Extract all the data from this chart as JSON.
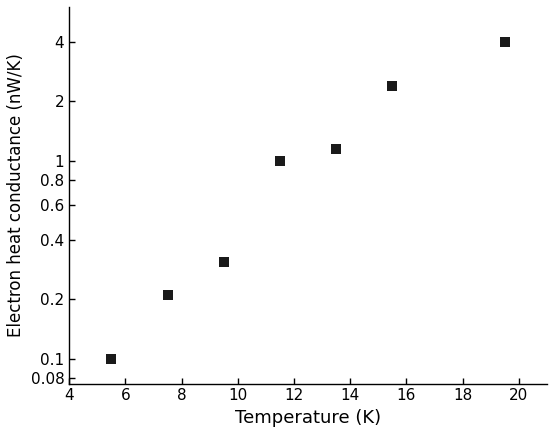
{
  "x": [
    5.5,
    7.5,
    9.5,
    11.5,
    13.5,
    15.5,
    19.5
  ],
  "y": [
    0.1,
    0.21,
    0.31,
    1.0,
    1.15,
    2.4,
    4.0
  ],
  "xlabel": "Temperature (K)",
  "ylabel": "Electron heat conductance (nW/K)",
  "xlim": [
    4,
    21
  ],
  "ylim": [
    0.075,
    6.0
  ],
  "xticks": [
    4,
    6,
    8,
    10,
    12,
    14,
    16,
    18,
    20
  ],
  "yticks": [
    0.08,
    0.1,
    0.2,
    0.4,
    0.6,
    0.8,
    1.0,
    2.0,
    4.0
  ],
  "ytick_labels": [
    "0.08",
    "0.1",
    "0.2",
    "0.4",
    "0.6",
    "0.8",
    "1",
    "2",
    "4"
  ],
  "marker_color": "#1a1a1a",
  "marker_size": 55,
  "background_color": "#ffffff",
  "xlabel_fontsize": 13,
  "ylabel_fontsize": 12,
  "tick_fontsize": 11
}
